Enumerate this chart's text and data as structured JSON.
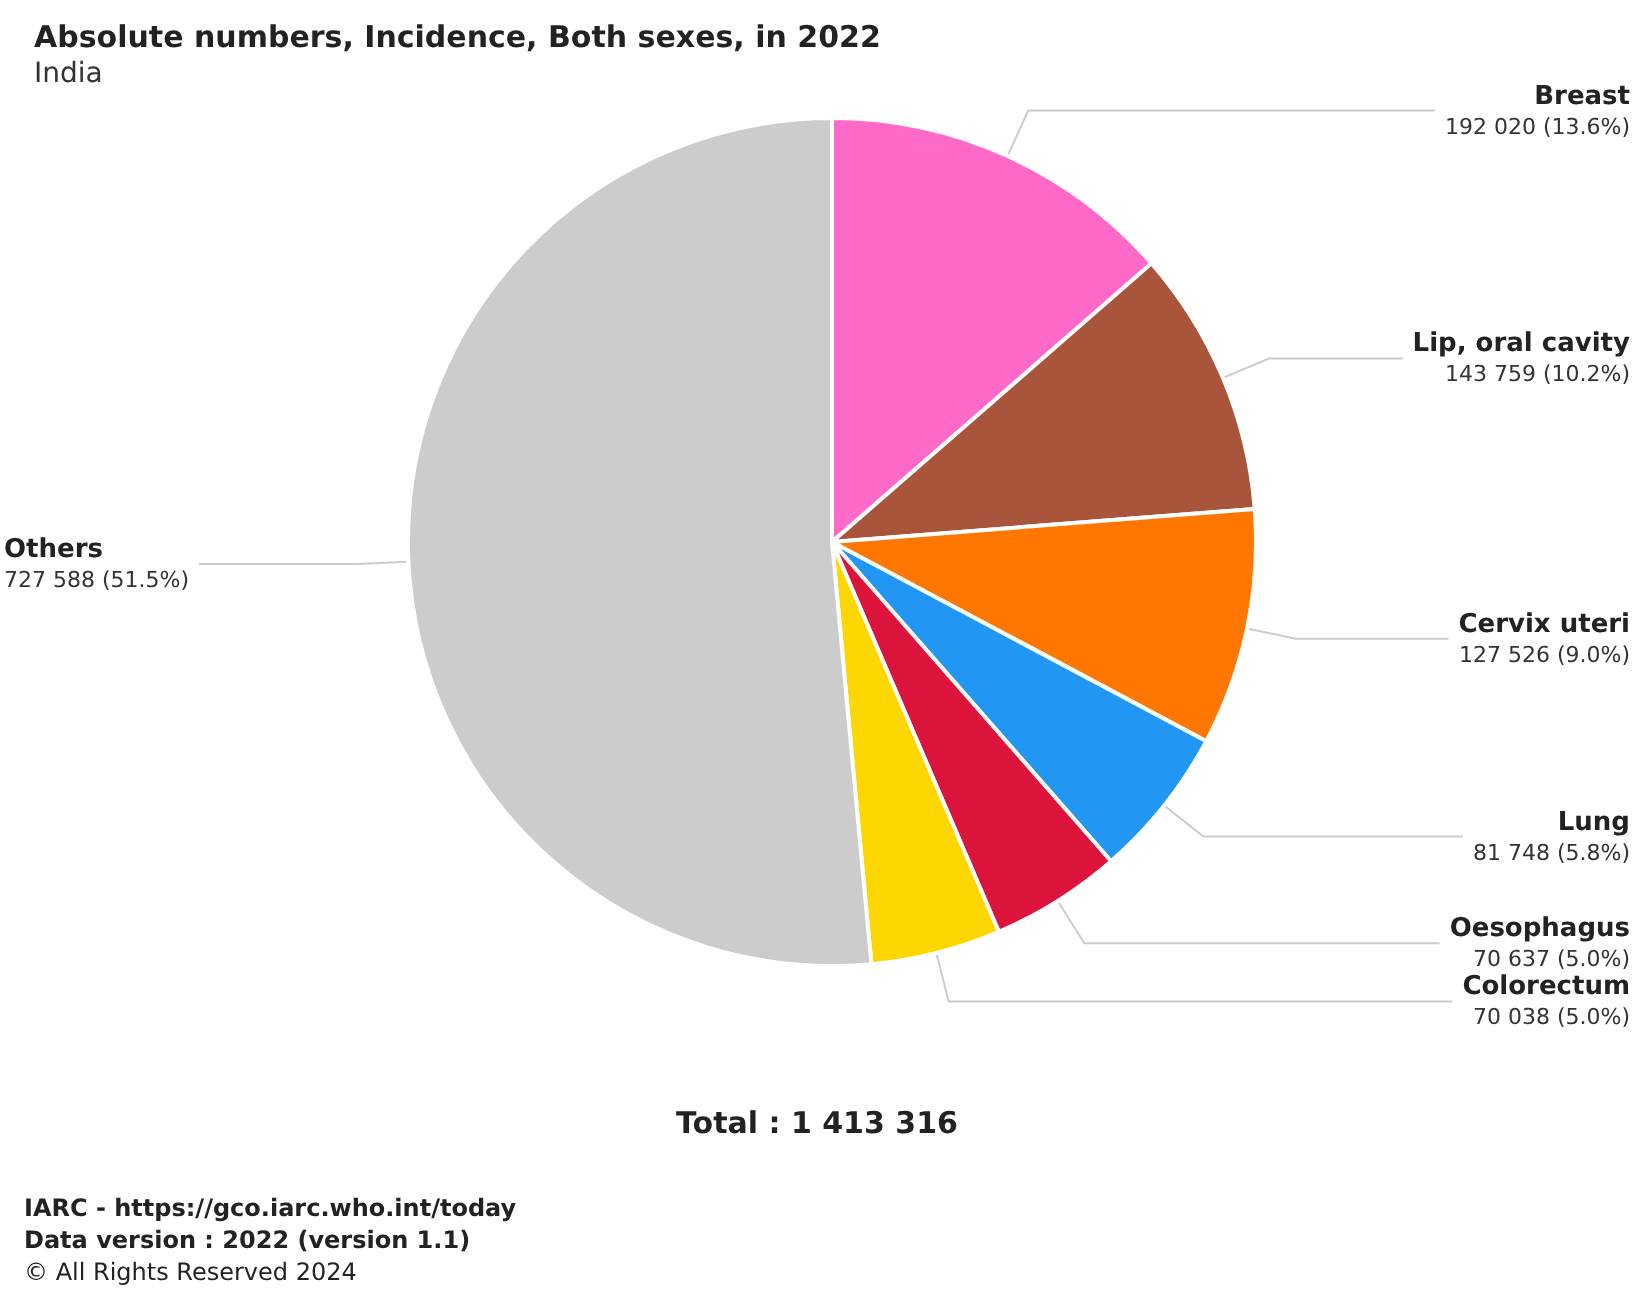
{
  "chart_data": {
    "type": "pie",
    "title": "Absolute numbers, Incidence, Both sexes, in 2022",
    "subtitle": "India",
    "categories": [
      "Breast",
      "Lip, oral cavity",
      "Cervix uteri",
      "Lung",
      "Oesophagus",
      "Colorectum",
      "Others"
    ],
    "values": [
      192020,
      143759,
      127526,
      81748,
      70637,
      70038,
      727588
    ],
    "value_labels": [
      "192 020 (13.6%)",
      "143 759 (10.2%)",
      "127 526 (9.0%)",
      "81 748 (5.8%)",
      "70 637 (5.0%)",
      "70 038 (5.0%)",
      "727 588 (51.5%)"
    ],
    "colors": [
      "#ff69c8",
      "#a8553c",
      "#ff7700",
      "#2196f3",
      "#dc143c",
      "#ffd700",
      "#cccccc"
    ],
    "legend": false,
    "annotations": [
      "Total : 1 413 316",
      "IARC - https://gco.iarc.who.int/today",
      "Data version : 2022 (version 1.1)",
      "© All Rights Reserved 2024"
    ]
  }
}
